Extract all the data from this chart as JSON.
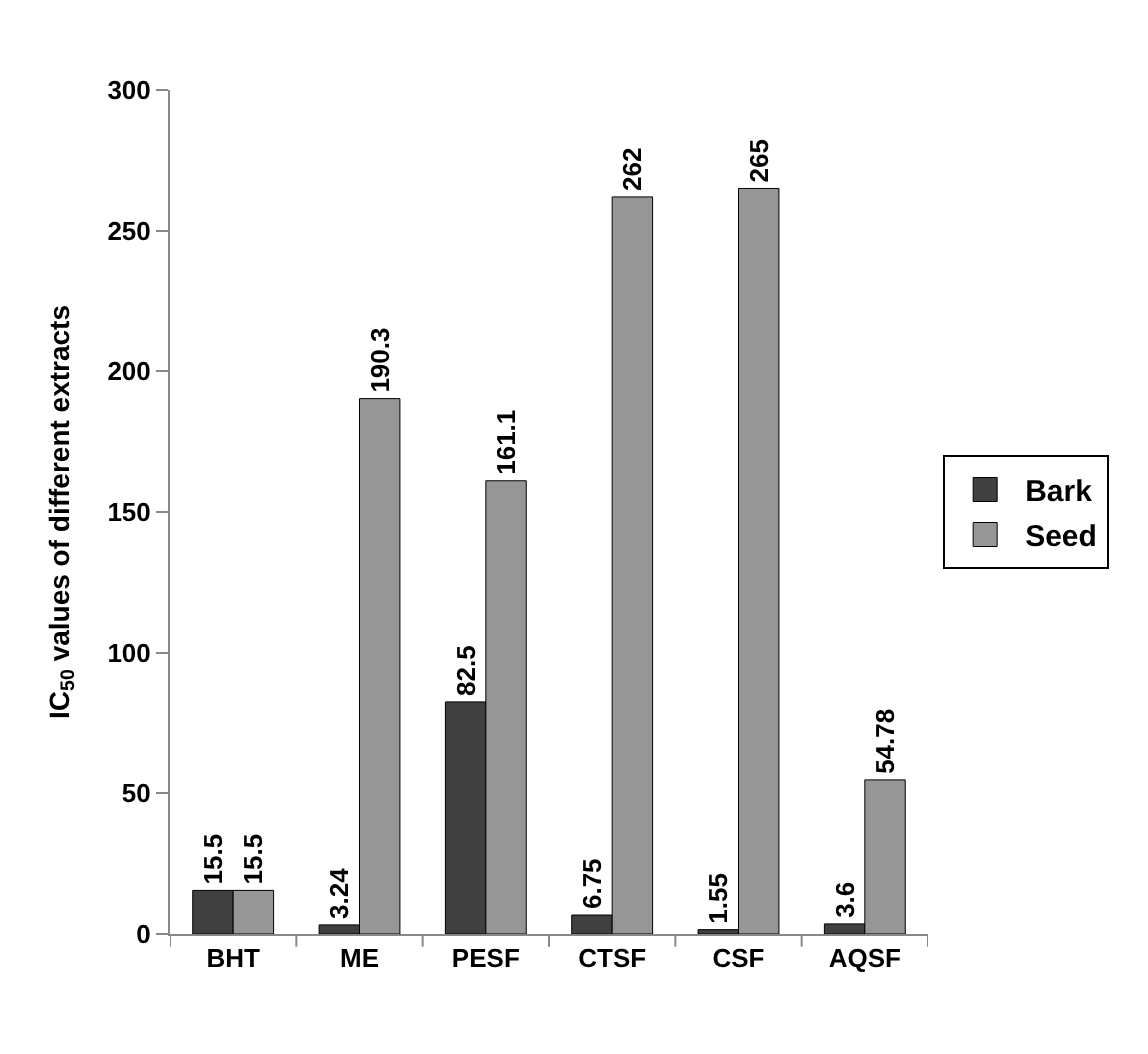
{
  "chart_data": {
    "type": "bar",
    "ylabel": "IC$_{50}$ values of different extracts",
    "categories": [
      "BHT",
      "ME",
      "PESF",
      "CTSF",
      "CSF",
      "AQSF"
    ],
    "series": [
      {
        "name": "Bark",
        "color": "#404040",
        "values": [
          15.5,
          3.24,
          82.5,
          6.75,
          1.55,
          3.6
        ]
      },
      {
        "name": "Seed",
        "color": "#969696",
        "values": [
          15.5,
          190.3,
          161.1,
          262,
          265,
          54.78
        ]
      }
    ],
    "ylim": [
      0,
      300
    ],
    "yticks": [
      0,
      50,
      100,
      150,
      200,
      250,
      300
    ],
    "legend": "right",
    "data_labels": true
  }
}
